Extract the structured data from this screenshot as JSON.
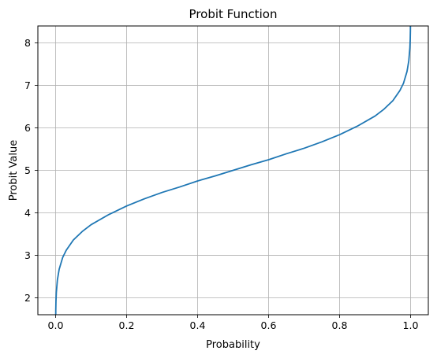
{
  "chart_data": {
    "type": "line",
    "title": "Probit Function",
    "xlabel": "Probability",
    "ylabel": "Probit Value",
    "xlim": [
      -0.05,
      1.05
    ],
    "ylim": [
      1.6,
      8.4
    ],
    "xticks": [
      0.0,
      0.2,
      0.4,
      0.6,
      0.8,
      1.0
    ],
    "xtick_labels": [
      "0.0",
      "0.2",
      "0.4",
      "0.6",
      "0.8",
      "1.0"
    ],
    "yticks": [
      2,
      3,
      4,
      5,
      6,
      7,
      8
    ],
    "ytick_labels": [
      "2",
      "3",
      "4",
      "5",
      "6",
      "7",
      "8"
    ],
    "grid": true,
    "series_color": "#1f77b4",
    "grid_color": "#b0b0b0",
    "series": [
      {
        "x": [
          0.0001,
          0.0005,
          0.001,
          0.002,
          0.005,
          0.01,
          0.02,
          0.03,
          0.05,
          0.075,
          0.1,
          0.15,
          0.2,
          0.25,
          0.3,
          0.35,
          0.4,
          0.45,
          0.5,
          0.55,
          0.6,
          0.65,
          0.7,
          0.75,
          0.8,
          0.85,
          0.9,
          0.925,
          0.95,
          0.97,
          0.98,
          0.99,
          0.995,
          0.998,
          0.999,
          0.9995,
          0.9999
        ],
        "y": [
          1.28,
          1.71,
          1.91,
          2.12,
          2.42,
          2.67,
          2.95,
          3.12,
          3.36,
          3.56,
          3.72,
          3.96,
          4.16,
          4.33,
          4.48,
          4.61,
          4.75,
          4.87,
          5.0,
          5.13,
          5.25,
          5.39,
          5.52,
          5.67,
          5.84,
          6.04,
          6.28,
          6.44,
          6.64,
          6.88,
          7.05,
          7.33,
          7.58,
          7.88,
          8.09,
          8.29,
          8.72
        ]
      }
    ]
  }
}
